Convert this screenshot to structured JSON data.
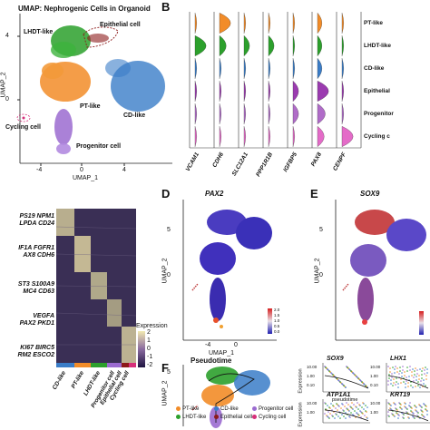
{
  "panels": {
    "B": "B",
    "D": "D",
    "E": "E",
    "F": "F"
  },
  "umapA": {
    "title": "UMAP: Nephrogenic Cells in Organoid",
    "xlabel": "UMAP_1",
    "ylabel": "UMAP_2",
    "xticks": [
      "-4",
      "0",
      "4"
    ],
    "yticks": [
      "4",
      "0"
    ],
    "clusters": [
      {
        "name": "LHDT-like",
        "color": "#2ca02c"
      },
      {
        "name": "Epithelial cell",
        "color": "#8c1a1a"
      },
      {
        "name": "PT-like",
        "color": "#f28c28"
      },
      {
        "name": "CD-like",
        "color": "#3a7dc8"
      },
      {
        "name": "Cycling cell",
        "color": "#d62f7a"
      },
      {
        "name": "Progenitor cell",
        "color": "#9b6bd0"
      }
    ]
  },
  "violin": {
    "genes": [
      "VCAM1",
      "CDH6",
      "SLC12A1",
      "PPP1R1B",
      "IGFBP5",
      "PAX8",
      "CENPF"
    ],
    "rows": [
      "PT-like",
      "LHDT-like",
      "CD-like",
      "Epithelial",
      "Progenitor",
      "Cycling c"
    ],
    "row_colors": [
      "#f28c28",
      "#2ca02c",
      "#3a7dc8",
      "#9b3bb0",
      "#b06cc8",
      "#e46bc8"
    ]
  },
  "heatmap": {
    "gene_groups": [
      "PS19 NPM1\nLPDA CD24",
      "IF1A FGFR1\nAX8 CDH6",
      "ST3 S100A9\nMC4 CD63",
      "VEGFA\nPAX2 PKD1",
      "KI67 BIRC5\nRM2 ESCO2"
    ],
    "legend_title": "Expression",
    "legend_ticks": [
      "2",
      "1",
      "0",
      "-1",
      "-2"
    ],
    "xlabels": [
      "CD-like",
      "PT-like",
      "LHDT-like",
      "Progenitor cell",
      "Epithelial cell",
      "Cycling cell"
    ],
    "bar_colors": [
      "#3a7dc8",
      "#f28c28",
      "#2ca02c",
      "#9b6bd0",
      "#8c1a1a",
      "#d62f7a"
    ]
  },
  "panelD": {
    "title": "PAX2",
    "xlabel": "UMAP_1",
    "ylabel": "UMAP_2",
    "xticks": [
      "-4",
      "0"
    ],
    "yticks": [
      "5",
      "0"
    ],
    "cb_ticks": [
      "2.0",
      "1.5",
      "1.0",
      "0.5",
      "0.0"
    ]
  },
  "panelE": {
    "title": "SOX9",
    "ylabel": "UMAP_2",
    "yticks": [
      "5",
      "0"
    ]
  },
  "panelF": {
    "title": "Pseudotime",
    "xlabel": "UMAP_1",
    "ylabel": "UMAP_2",
    "xticks": [
      "-4",
      "0",
      "4"
    ],
    "yticks": [
      "5",
      "0"
    ],
    "legend": [
      {
        "name": "PT-like",
        "color": "#f28c28"
      },
      {
        "name": "LHDT-like",
        "color": "#2ca02c"
      },
      {
        "name": "CD-like",
        "color": "#3a7dc8"
      },
      {
        "name": "Epithelial cell",
        "color": "#8c1a1a"
      },
      {
        "name": "Progenitor cell",
        "color": "#9b6bd0"
      },
      {
        "name": "Cycling cell",
        "color": "#d62f7a"
      }
    ],
    "subplots": [
      {
        "gene": "SOX9",
        "ylabel": "Expression",
        "xlabel": "pseudotime",
        "yticks": [
          "10.00",
          "1.00",
          "0.10"
        ],
        "xticks": [
          "0",
          "10",
          "20"
        ]
      },
      {
        "gene": "LHX1",
        "yticks": [
          "10.00",
          "1.00",
          "0.10"
        ],
        "xticks": [
          "0",
          "10"
        ]
      },
      {
        "gene": "ATP1A1",
        "ylabel": "Expression",
        "yticks": [
          "10.00",
          "1.00"
        ]
      },
      {
        "gene": "KRT19",
        "yticks": [
          "10.00",
          "1.00"
        ]
      }
    ]
  }
}
